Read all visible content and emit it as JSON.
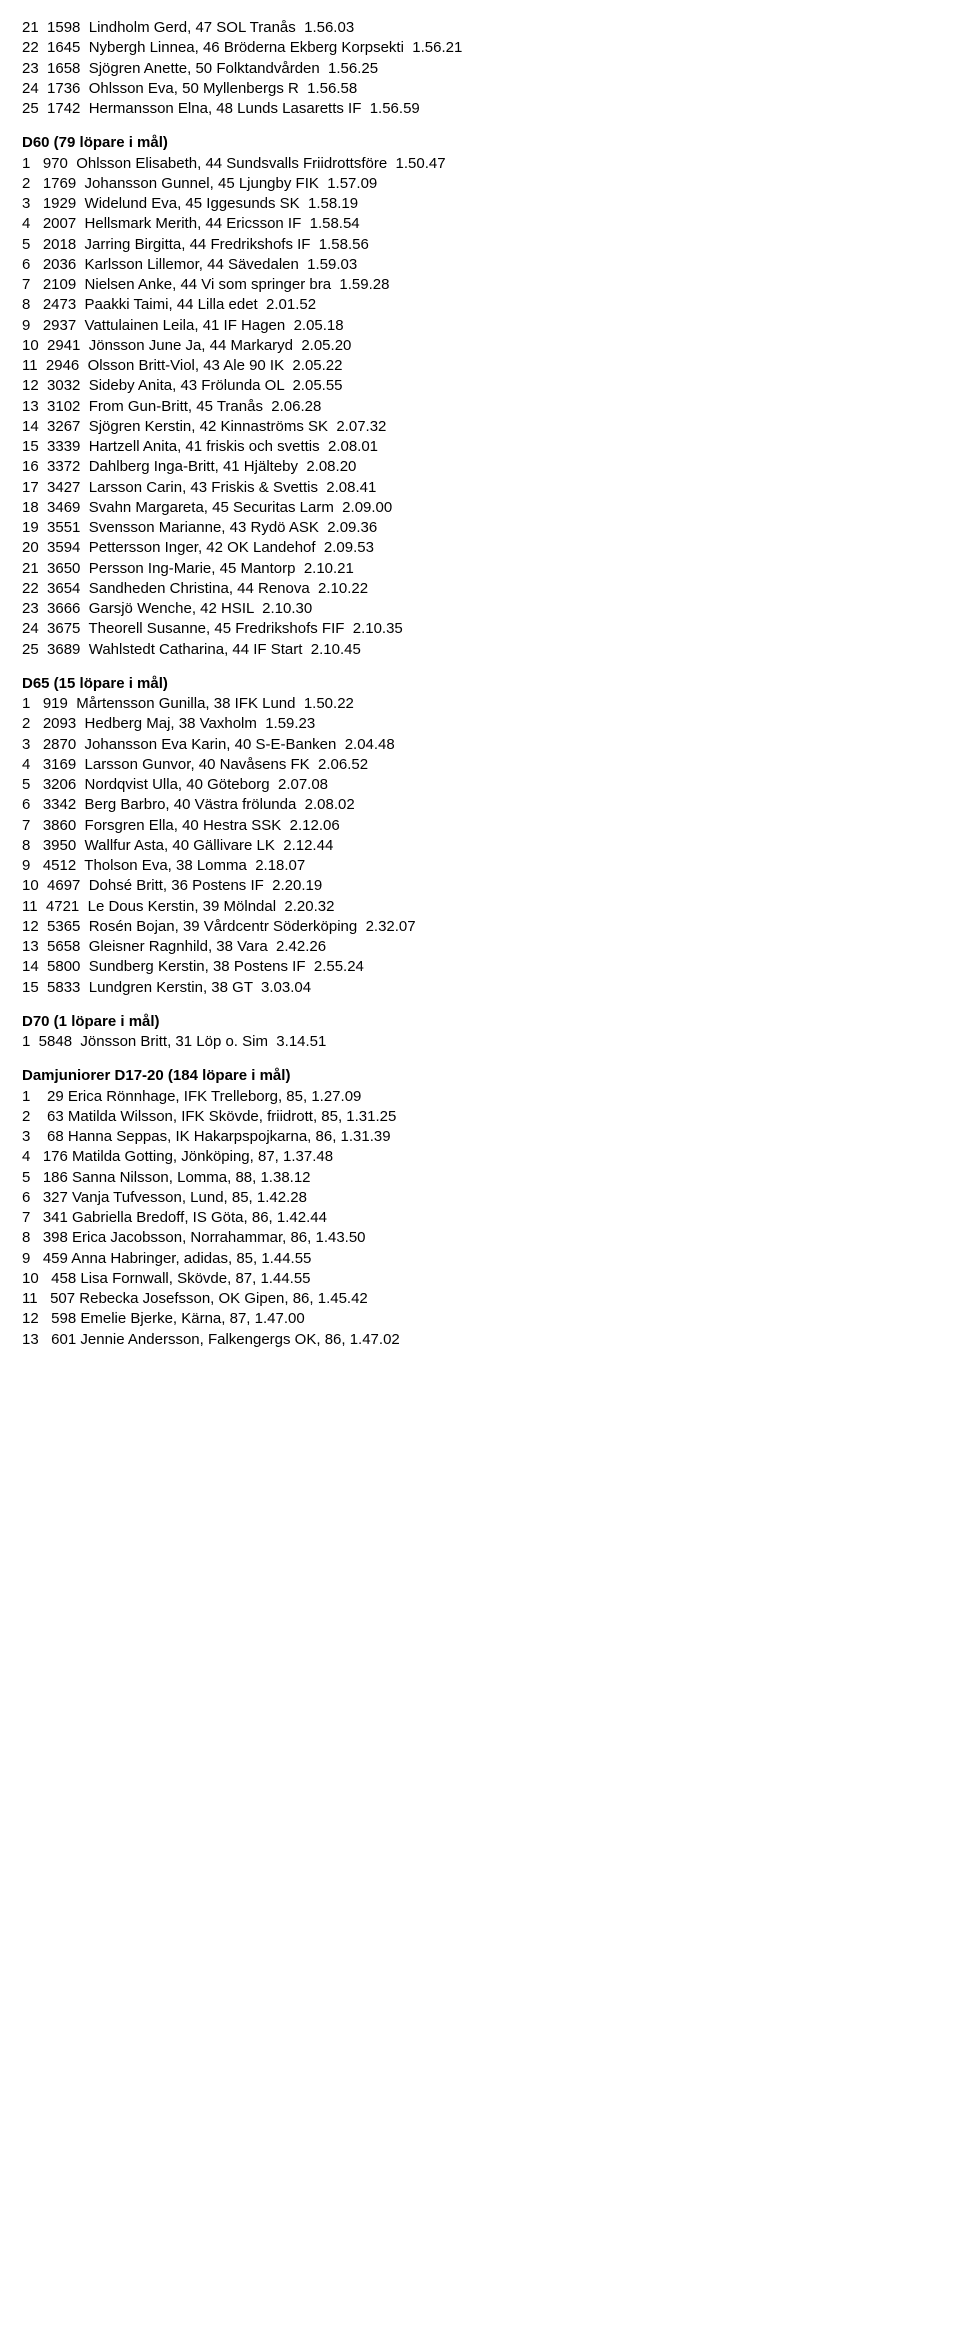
{
  "blocks": [
    {
      "heading": null,
      "lines": [
        "21  1598  Lindholm Gerd, 47 SOL Tranås  1.56.03",
        "22  1645  Nybergh Linnea, 46 Bröderna Ekberg Korpsekti  1.56.21",
        "23  1658  Sjögren Anette, 50 Folktandvården  1.56.25",
        "24  1736  Ohlsson Eva, 50 Myllenbergs R  1.56.58",
        "25  1742  Hermansson Elna, 48 Lunds Lasaretts IF  1.56.59"
      ]
    },
    {
      "heading": "D60 (79 löpare i mål)",
      "lines": [
        "1   970  Ohlsson Elisabeth, 44 Sundsvalls Friidrottsföre  1.50.47",
        "2   1769  Johansson Gunnel, 45 Ljungby FIK  1.57.09",
        "3   1929  Widelund Eva, 45 Iggesunds SK  1.58.19",
        "4   2007  Hellsmark Merith, 44 Ericsson IF  1.58.54",
        "5   2018  Jarring Birgitta, 44 Fredrikshofs IF  1.58.56",
        "6   2036  Karlsson Lillemor, 44 Sävedalen  1.59.03",
        "7   2109  Nielsen Anke, 44 Vi som springer bra  1.59.28",
        "8   2473  Paakki Taimi, 44 Lilla edet  2.01.52",
        "9   2937  Vattulainen Leila, 41 IF Hagen  2.05.18",
        "10  2941  Jönsson June Ja, 44 Markaryd  2.05.20",
        "11  2946  Olsson Britt-Viol, 43 Ale 90 IK  2.05.22",
        "12  3032  Sideby Anita, 43 Frölunda OL  2.05.55",
        "13  3102  From Gun-Britt, 45 Tranås  2.06.28",
        "14  3267  Sjögren Kerstin, 42 Kinnaströms SK  2.07.32",
        "15  3339  Hartzell Anita, 41 friskis och svettis  2.08.01",
        "16  3372  Dahlberg Inga-Britt, 41 Hjälteby  2.08.20",
        "17  3427  Larsson Carin, 43 Friskis & Svettis  2.08.41",
        "18  3469  Svahn Margareta, 45 Securitas Larm  2.09.00",
        "19  3551  Svensson Marianne, 43 Rydö ASK  2.09.36",
        "20  3594  Pettersson Inger, 42 OK Landehof  2.09.53",
        "21  3650  Persson Ing-Marie, 45 Mantorp  2.10.21",
        "22  3654  Sandheden Christina, 44 Renova  2.10.22",
        "23  3666  Garsjö Wenche, 42 HSIL  2.10.30",
        "24  3675  Theorell Susanne, 45 Fredrikshofs FIF  2.10.35",
        "25  3689  Wahlstedt Catharina, 44 IF Start  2.10.45"
      ]
    },
    {
      "heading": "D65 (15 löpare i mål)",
      "lines": [
        "1   919  Mårtensson Gunilla, 38 IFK Lund  1.50.22",
        "2   2093  Hedberg Maj, 38 Vaxholm  1.59.23",
        "3   2870  Johansson Eva Karin, 40 S-E-Banken  2.04.48",
        "4   3169  Larsson Gunvor, 40 Navåsens FK  2.06.52",
        "5   3206  Nordqvist Ulla, 40 Göteborg  2.07.08",
        "6   3342  Berg Barbro, 40 Västra frölunda  2.08.02",
        "7   3860  Forsgren Ella, 40 Hestra SSK  2.12.06",
        "8   3950  Wallfur Asta, 40 Gällivare LK  2.12.44",
        "9   4512  Tholson Eva, 38 Lomma  2.18.07",
        "10  4697  Dohsé Britt, 36 Postens IF  2.20.19",
        "11  4721  Le Dous Kerstin, 39 Mölndal  2.20.32",
        "12  5365  Rosén Bojan, 39 Vårdcentr Söderköping  2.32.07",
        "13  5658  Gleisner Ragnhild, 38 Vara  2.42.26",
        "14  5800  Sundberg Kerstin, 38 Postens IF  2.55.24",
        "15  5833  Lundgren Kerstin, 38 GT  3.03.04"
      ]
    },
    {
      "heading": "D70  (1 löpare i mål)",
      "lines": [
        "1  5848  Jönsson Britt, 31 Löp o. Sim  3.14.51"
      ]
    },
    {
      "heading": "Damjuniorer D17-20 (184 löpare i mål)",
      "lines": [
        "1    29 Erica Rönnhage, IFK Trelleborg, 85, 1.27.09",
        "2    63 Matilda Wilsson, IFK Skövde, friidrott, 85, 1.31.25",
        "3    68 Hanna Seppas, IK Hakarpspojkarna, 86, 1.31.39",
        "4   176 Matilda Gotting, Jönköping, 87, 1.37.48",
        "5   186 Sanna Nilsson, Lomma, 88, 1.38.12",
        "6   327 Vanja Tufvesson, Lund, 85, 1.42.28",
        "7   341 Gabriella Bredoff, IS Göta, 86, 1.42.44",
        "8   398 Erica Jacobsson, Norrahammar, 86, 1.43.50",
        "9   459 Anna Habringer, adidas, 85, 1.44.55",
        "10   458 Lisa Fornwall, Skövde, 87, 1.44.55",
        "11   507 Rebecka Josefsson, OK Gipen, 86, 1.45.42",
        "12   598 Emelie Bjerke, Kärna, 87, 1.47.00",
        "13   601 Jennie Andersson, Falkengergs OK, 86, 1.47.02"
      ]
    }
  ]
}
